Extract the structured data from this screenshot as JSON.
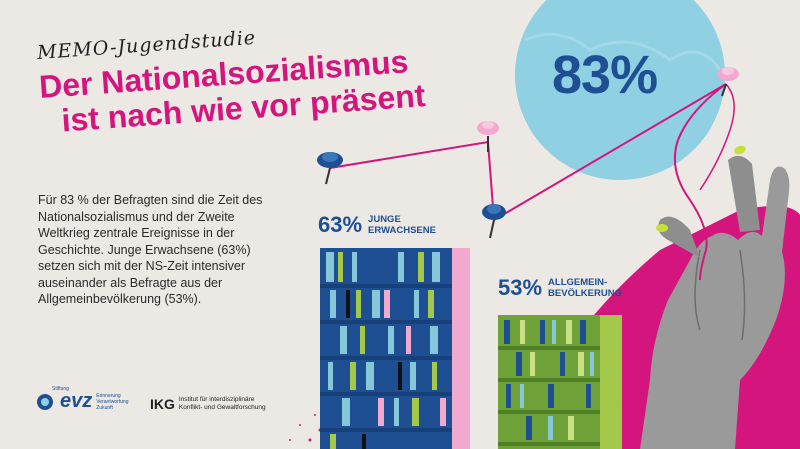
{
  "kicker": "MEMO-Jugendstudie",
  "headline": {
    "line1": "Der Nationalsozialismus",
    "line2": "ist nach wie vor präsent"
  },
  "big_stat": "83%",
  "body": "Für 83 % der Befragten sind die Zeit des Nationalsozialismus und der Zweite Weltkrieg zentrale Ereignisse in der Geschichte. Junge Erwachsene (63%) setzen sich mit der NS-Zeit intensiver auseinander als Befragte aus der Allgemeinbevölkerung (53%).",
  "stats": {
    "young": {
      "value": "63%",
      "label": "JUNGE\nERWACHSENE"
    },
    "general": {
      "value": "53%",
      "label": "ALLGEMEIN-\nBEVÖLKERUNG"
    }
  },
  "logos": {
    "evz": {
      "pre": "Stiftung",
      "name": "evz",
      "sub": "Erinnerung\nVerantwortung\nZukunft"
    },
    "ikg": {
      "name": "IKG",
      "sub": "Institut für interdisziplinäre\nKonflikt- und Gewaltforschung"
    }
  },
  "colors": {
    "magenta": "#d4157d",
    "blue": "#1f4f93",
    "circle": "#8fd0e3",
    "green": "#6fa33a",
    "pink": "#f2a9cf"
  },
  "icons": [
    "pushpin-icon",
    "thread-icon",
    "hand-icon",
    "bookshelf-icon"
  ]
}
